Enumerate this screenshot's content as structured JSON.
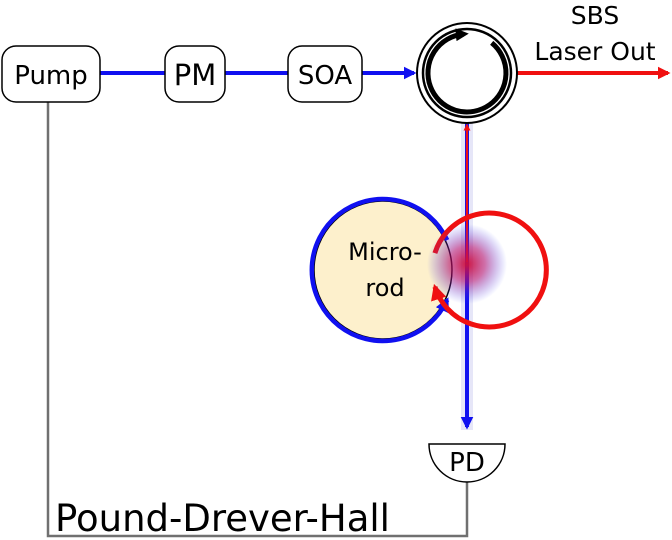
{
  "boxes": {
    "pump": "Pump",
    "pm": "PM",
    "soa": "SOA"
  },
  "output": {
    "line1": "SBS",
    "line2": "Laser Out"
  },
  "microrod": {
    "line1": "Micro-",
    "line2": "rod"
  },
  "detector": "PD",
  "feedback_label": "Pound-Drever-Hall",
  "colors": {
    "pump_beam": "#1010f0",
    "sbs_beam": "#f01010",
    "feedback": "#707070",
    "microrod_fill": "#fdf0cc"
  }
}
